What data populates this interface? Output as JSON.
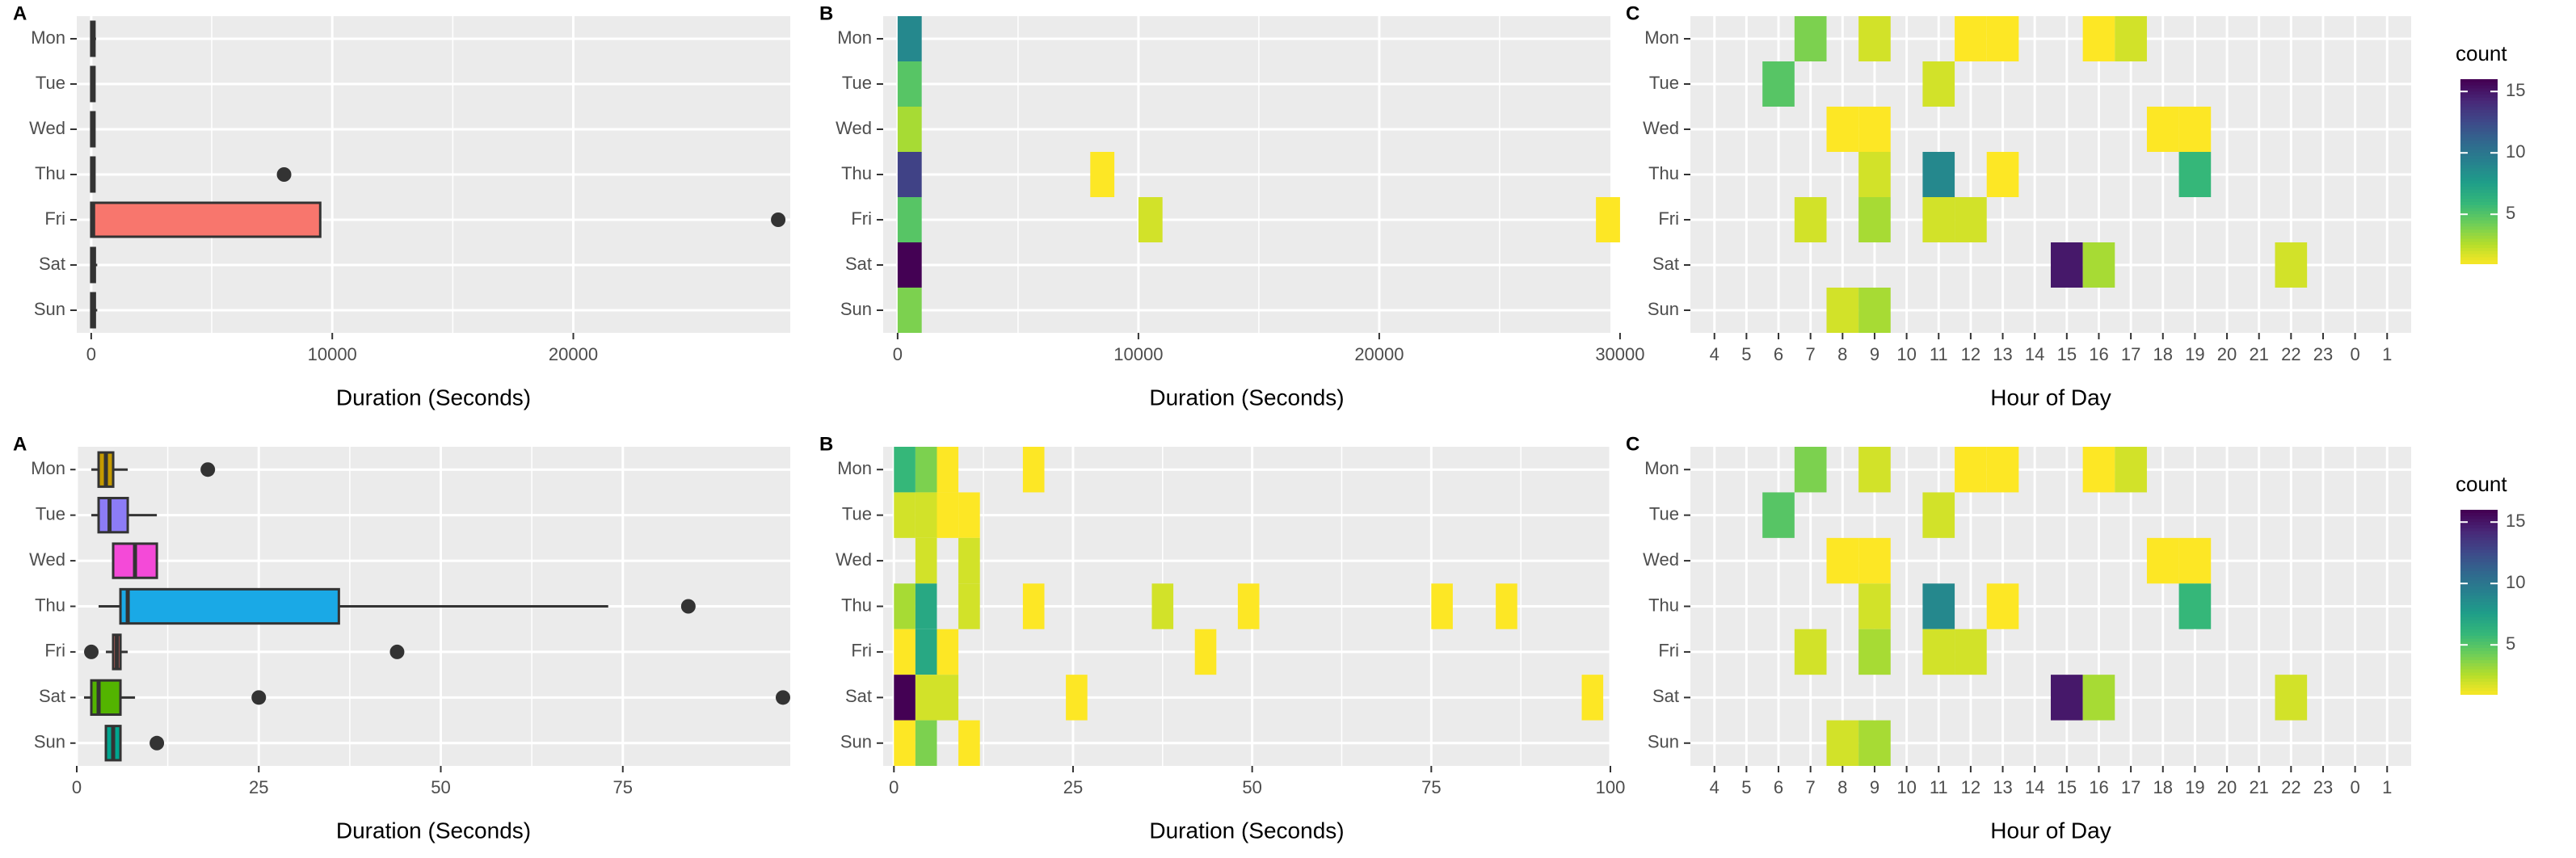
{
  "colors": {
    "panel_bg": "#ebebeb",
    "grid": "#ffffff",
    "text": "#4d4d4d",
    "title": "#000000",
    "box_fri_top": "#f8766d",
    "box_mon": "#c49a00",
    "box_tue": "#8c7cf6",
    "box_wed": "#f44ad8",
    "box_thu": "#1aa9e6",
    "box_fri": "#f8766d",
    "box_sat": "#53b400",
    "box_sun": "#00a68f"
  },
  "chart_data": [
    {
      "id": "A_top",
      "type": "boxplot",
      "panel_label": "A",
      "xlabel": "Duration (Seconds)",
      "ylabel": "",
      "categories": [
        "Mon",
        "Tue",
        "Wed",
        "Thu",
        "Fri",
        "Sat",
        "Sun"
      ],
      "xlim": [
        -600,
        29000
      ],
      "xticks": [
        0,
        10000,
        20000
      ],
      "tick_labels": [
        "0",
        "10000",
        "20000"
      ],
      "boxes": [
        {
          "day": "Mon",
          "q1": 0,
          "median": 60,
          "q3": 120,
          "whisker_low": 0,
          "whisker_high": 200,
          "outliers": []
        },
        {
          "day": "Tue",
          "q1": 0,
          "median": 40,
          "q3": 90,
          "whisker_low": 0,
          "whisker_high": 150,
          "outliers": []
        },
        {
          "day": "Wed",
          "q1": 0,
          "median": 40,
          "q3": 90,
          "whisker_low": 0,
          "whisker_high": 150,
          "outliers": []
        },
        {
          "day": "Thu",
          "q1": 0,
          "median": 40,
          "q3": 90,
          "whisker_low": 0,
          "whisker_high": 150,
          "outliers": [
            8000
          ]
        },
        {
          "day": "Fri",
          "q1": 0,
          "median": 80,
          "q3": 9500,
          "whisker_low": 0,
          "whisker_high": 9500,
          "outliers": [
            28500
          ]
        },
        {
          "day": "Sat",
          "q1": 0,
          "median": 60,
          "q3": 150,
          "whisker_low": 0,
          "whisker_high": 250,
          "outliers": []
        },
        {
          "day": "Sun",
          "q1": 0,
          "median": 60,
          "q3": 150,
          "whisker_low": 0,
          "whisker_high": 250,
          "outliers": []
        }
      ]
    },
    {
      "id": "B_top",
      "type": "heatmap",
      "panel_label": "B",
      "xlabel": "Duration (Seconds)",
      "categories": [
        "Mon",
        "Tue",
        "Wed",
        "Thu",
        "Fri",
        "Sat",
        "Sun"
      ],
      "xlim": [
        -600,
        29600
      ],
      "xticks": [
        0,
        10000,
        20000,
        30000
      ],
      "tick_labels": [
        "0",
        "10000",
        "20000",
        "30000"
      ],
      "bin_width": 1000,
      "cells": [
        {
          "day": "Mon",
          "x": 0,
          "count": 9
        },
        {
          "day": "Tue",
          "x": 0,
          "count": 5
        },
        {
          "day": "Wed",
          "count": 3,
          "x": 0
        },
        {
          "day": "Thu",
          "x": 0,
          "count": 13
        },
        {
          "day": "Thu",
          "x": 8000,
          "count": 1
        },
        {
          "day": "Fri",
          "x": 0,
          "count": 5
        },
        {
          "day": "Fri",
          "x": 10000,
          "count": 2
        },
        {
          "day": "Fri",
          "x": 29000,
          "count": 1
        },
        {
          "day": "Sat",
          "x": 0,
          "count": 16
        },
        {
          "day": "Sun",
          "x": 0,
          "count": 4
        }
      ]
    },
    {
      "id": "C_top",
      "type": "heatmap",
      "panel_label": "C",
      "xlabel": "Hour of Day",
      "categories": [
        "Mon",
        "Tue",
        "Wed",
        "Thu",
        "Fri",
        "Sat",
        "Sun"
      ],
      "hours": [
        "4",
        "5",
        "6",
        "7",
        "8",
        "9",
        "10",
        "11",
        "12",
        "13",
        "14",
        "15",
        "16",
        "17",
        "18",
        "19",
        "20",
        "21",
        "22",
        "23",
        "0",
        "1"
      ],
      "cells": [
        {
          "day": "Mon",
          "hour": "7",
          "count": 4
        },
        {
          "day": "Mon",
          "hour": "9",
          "count": 2
        },
        {
          "day": "Mon",
          "hour": "12",
          "count": 1
        },
        {
          "day": "Mon",
          "hour": "13",
          "count": 1
        },
        {
          "day": "Mon",
          "hour": "16",
          "count": 1
        },
        {
          "day": "Mon",
          "hour": "17",
          "count": 2
        },
        {
          "day": "Tue",
          "hour": "6",
          "count": 5
        },
        {
          "day": "Tue",
          "hour": "11",
          "count": 2
        },
        {
          "day": "Wed",
          "hour": "8",
          "count": 1
        },
        {
          "day": "Wed",
          "hour": "9",
          "count": 1
        },
        {
          "day": "Wed",
          "hour": "18",
          "count": 1
        },
        {
          "day": "Wed",
          "hour": "19",
          "count": 1
        },
        {
          "day": "Thu",
          "hour": "9",
          "count": 2
        },
        {
          "day": "Thu",
          "hour": "11",
          "count": 9
        },
        {
          "day": "Thu",
          "hour": "13",
          "count": 1
        },
        {
          "day": "Thu",
          "hour": "19",
          "count": 6
        },
        {
          "day": "Fri",
          "hour": "7",
          "count": 2
        },
        {
          "day": "Fri",
          "hour": "9",
          "count": 3
        },
        {
          "day": "Fri",
          "hour": "11",
          "count": 2
        },
        {
          "day": "Fri",
          "hour": "12",
          "count": 2
        },
        {
          "day": "Sat",
          "hour": "15",
          "count": 15
        },
        {
          "day": "Sat",
          "hour": "16",
          "count": 3
        },
        {
          "day": "Sat",
          "hour": "22",
          "count": 2
        },
        {
          "day": "Sun",
          "hour": "8",
          "count": 2
        },
        {
          "day": "Sun",
          "hour": "9",
          "count": 3
        }
      ],
      "legend": {
        "title": "count",
        "ticks": [
          5,
          10,
          15
        ],
        "range": [
          1,
          16
        ]
      }
    },
    {
      "id": "A_bottom",
      "type": "boxplot",
      "panel_label": "A",
      "xlabel": "Duration (Seconds)",
      "categories": [
        "Mon",
        "Tue",
        "Wed",
        "Thu",
        "Fri",
        "Sat",
        "Sun"
      ],
      "xlim": [
        0,
        98
      ],
      "xticks": [
        0,
        25,
        50,
        75
      ],
      "tick_labels": [
        "0",
        "25",
        "50",
        "75"
      ],
      "boxes": [
        {
          "day": "Mon",
          "q1": 3,
          "median": 4,
          "q3": 5,
          "whisker_low": 2,
          "whisker_high": 7,
          "outliers": [
            18
          ]
        },
        {
          "day": "Tue",
          "q1": 3,
          "median": 4.5,
          "q3": 7,
          "whisker_low": 2,
          "whisker_high": 11,
          "outliers": []
        },
        {
          "day": "Wed",
          "q1": 5,
          "median": 8,
          "q3": 11,
          "whisker_low": 5,
          "whisker_high": 11,
          "outliers": []
        },
        {
          "day": "Thu",
          "q1": 6,
          "median": 7,
          "q3": 36,
          "whisker_low": 3,
          "whisker_high": 73,
          "outliers": [
            84
          ]
        },
        {
          "day": "Fri",
          "q1": 5,
          "median": 5.5,
          "q3": 6,
          "whisker_low": 4,
          "whisker_high": 7,
          "outliers": [
            2,
            44
          ]
        },
        {
          "day": "Sat",
          "q1": 2,
          "median": 3,
          "q3": 6,
          "whisker_low": 1,
          "whisker_high": 8,
          "outliers": [
            25,
            97
          ]
        },
        {
          "day": "Sun",
          "q1": 4,
          "median": 5,
          "q3": 6,
          "whisker_low": 4,
          "whisker_high": 6,
          "outliers": [
            11
          ]
        }
      ]
    },
    {
      "id": "B_bottom",
      "type": "heatmap",
      "panel_label": "B",
      "xlabel": "Duration (Seconds)",
      "categories": [
        "Mon",
        "Tue",
        "Wed",
        "Thu",
        "Fri",
        "Sat",
        "Sun"
      ],
      "xlim": [
        -1.5,
        100
      ],
      "xticks": [
        0,
        25,
        50,
        75,
        100
      ],
      "tick_labels": [
        "0",
        "25",
        "50",
        "75",
        "100"
      ],
      "bin_width": 3,
      "cells": [
        {
          "day": "Mon",
          "x": 0,
          "count": 6
        },
        {
          "day": "Mon",
          "x": 3,
          "count": 4
        },
        {
          "day": "Mon",
          "x": 6,
          "count": 1
        },
        {
          "day": "Mon",
          "x": 18,
          "count": 1
        },
        {
          "day": "Tue",
          "x": 0,
          "count": 2
        },
        {
          "day": "Tue",
          "x": 3,
          "count": 2
        },
        {
          "day": "Tue",
          "x": 6,
          "count": 1
        },
        {
          "day": "Tue",
          "x": 9,
          "count": 1
        },
        {
          "day": "Wed",
          "x": 3,
          "count": 2
        },
        {
          "day": "Wed",
          "x": 9,
          "count": 2
        },
        {
          "day": "Thu",
          "x": 0,
          "count": 3
        },
        {
          "day": "Thu",
          "x": 3,
          "count": 7
        },
        {
          "day": "Thu",
          "x": 9,
          "count": 2
        },
        {
          "day": "Thu",
          "x": 18,
          "count": 1
        },
        {
          "day": "Thu",
          "x": 36,
          "count": 2
        },
        {
          "day": "Thu",
          "x": 48,
          "count": 1
        },
        {
          "day": "Thu",
          "x": 75,
          "count": 1
        },
        {
          "day": "Thu",
          "x": 84,
          "count": 1
        },
        {
          "day": "Fri",
          "x": 0,
          "count": 1
        },
        {
          "day": "Fri",
          "x": 3,
          "count": 7
        },
        {
          "day": "Fri",
          "x": 6,
          "count": 1
        },
        {
          "day": "Fri",
          "x": 42,
          "count": 1
        },
        {
          "day": "Sat",
          "x": 0,
          "count": 16
        },
        {
          "day": "Sat",
          "x": 3,
          "count": 2
        },
        {
          "day": "Sat",
          "x": 6,
          "count": 2
        },
        {
          "day": "Sat",
          "x": 24,
          "count": 1
        },
        {
          "day": "Sat",
          "x": 96,
          "count": 1
        },
        {
          "day": "Sun",
          "x": 0,
          "count": 1
        },
        {
          "day": "Sun",
          "x": 3,
          "count": 4
        },
        {
          "day": "Sun",
          "x": 9,
          "count": 1
        }
      ]
    },
    {
      "id": "C_bottom",
      "type": "heatmap",
      "panel_label": "C",
      "xlabel": "Hour of Day",
      "categories": [
        "Mon",
        "Tue",
        "Wed",
        "Thu",
        "Fri",
        "Sat",
        "Sun"
      ],
      "hours": [
        "4",
        "5",
        "6",
        "7",
        "8",
        "9",
        "10",
        "11",
        "12",
        "13",
        "14",
        "15",
        "16",
        "17",
        "18",
        "19",
        "20",
        "21",
        "22",
        "23",
        "0",
        "1"
      ],
      "cells": [
        {
          "day": "Mon",
          "hour": "7",
          "count": 4
        },
        {
          "day": "Mon",
          "hour": "9",
          "count": 2
        },
        {
          "day": "Mon",
          "hour": "12",
          "count": 1
        },
        {
          "day": "Mon",
          "hour": "13",
          "count": 1
        },
        {
          "day": "Mon",
          "hour": "16",
          "count": 1
        },
        {
          "day": "Mon",
          "hour": "17",
          "count": 2
        },
        {
          "day": "Tue",
          "hour": "6",
          "count": 5
        },
        {
          "day": "Tue",
          "hour": "11",
          "count": 2
        },
        {
          "day": "Wed",
          "hour": "8",
          "count": 1
        },
        {
          "day": "Wed",
          "hour": "9",
          "count": 1
        },
        {
          "day": "Wed",
          "hour": "18",
          "count": 1
        },
        {
          "day": "Wed",
          "hour": "19",
          "count": 1
        },
        {
          "day": "Thu",
          "hour": "9",
          "count": 2
        },
        {
          "day": "Thu",
          "hour": "11",
          "count": 9
        },
        {
          "day": "Thu",
          "hour": "13",
          "count": 1
        },
        {
          "day": "Thu",
          "hour": "19",
          "count": 6
        },
        {
          "day": "Fri",
          "hour": "7",
          "count": 2
        },
        {
          "day": "Fri",
          "hour": "9",
          "count": 3
        },
        {
          "day": "Fri",
          "hour": "11",
          "count": 2
        },
        {
          "day": "Fri",
          "hour": "12",
          "count": 2
        },
        {
          "day": "Sat",
          "hour": "15",
          "count": 15
        },
        {
          "day": "Sat",
          "hour": "16",
          "count": 3
        },
        {
          "day": "Sat",
          "hour": "22",
          "count": 2
        },
        {
          "day": "Sun",
          "hour": "8",
          "count": 2
        },
        {
          "day": "Sun",
          "hour": "9",
          "count": 3
        }
      ],
      "legend": {
        "title": "count",
        "ticks": [
          5,
          10,
          15
        ],
        "range": [
          1,
          16
        ]
      }
    }
  ]
}
